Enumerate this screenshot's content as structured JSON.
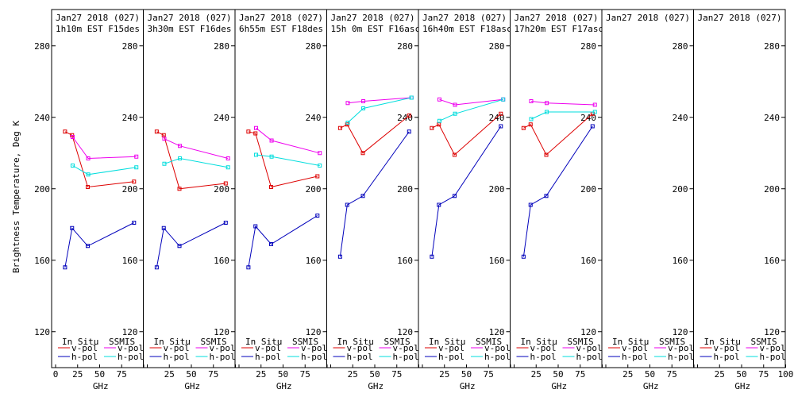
{
  "figure": {
    "ylabel": "Brightness Temperature, Deg K",
    "xlabel": "GHz",
    "legend": {
      "insitu_label": "In Situ",
      "ssmis_label": "SSMIS",
      "vpol_label": "v-pol",
      "hpol_label": "h-pol"
    }
  },
  "colors": {
    "insitu_vpol": "#dd0000",
    "insitu_hpol": "#0000bb",
    "ssmis_vpol": "#ee00ee",
    "ssmis_hpol": "#00dddd"
  },
  "chart_data": [
    {
      "type": "line",
      "title": "Jan27 2018 (027)",
      "subtitle": "1h10m EST F15des",
      "xlim": [
        0,
        100
      ],
      "ylim": [
        110,
        295
      ],
      "xticks": [
        0,
        25,
        50,
        75
      ],
      "yticks": [
        120,
        160,
        200,
        240,
        280
      ],
      "series": [
        {
          "name": "In Situ v-pol",
          "x": [
            10.7,
            18.7,
            36.5,
            89
          ],
          "y": [
            232,
            230,
            201,
            204
          ]
        },
        {
          "name": "In Situ h-pol",
          "x": [
            10.7,
            18.7,
            36.5,
            89
          ],
          "y": [
            156,
            178,
            168,
            181
          ]
        },
        {
          "name": "SSMIS v-pol",
          "x": [
            19.35,
            37,
            91.65
          ],
          "y": [
            229,
            217,
            218
          ]
        },
        {
          "name": "SSMIS h-pol",
          "x": [
            19.35,
            37,
            91.65
          ],
          "y": [
            213,
            208,
            212
          ]
        }
      ]
    },
    {
      "type": "line",
      "title": "Jan27 2018 (027)",
      "subtitle": "3h30m EST F16des",
      "xlim": [
        0,
        100
      ],
      "ylim": [
        110,
        295
      ],
      "xticks": [
        25,
        50,
        75
      ],
      "yticks": [
        120,
        160,
        200,
        240,
        280
      ],
      "series": [
        {
          "name": "In Situ v-pol",
          "x": [
            10.7,
            18.7,
            36.5,
            89
          ],
          "y": [
            232,
            230,
            200,
            203
          ]
        },
        {
          "name": "In Situ h-pol",
          "x": [
            10.7,
            18.7,
            36.5,
            89
          ],
          "y": [
            156,
            178,
            168,
            181
          ]
        },
        {
          "name": "SSMIS v-pol",
          "x": [
            19.35,
            37,
            91.65
          ],
          "y": [
            228,
            224,
            217
          ]
        },
        {
          "name": "SSMIS h-pol",
          "x": [
            19.35,
            37,
            91.65
          ],
          "y": [
            214,
            217,
            212
          ]
        }
      ]
    },
    {
      "type": "line",
      "title": "Jan27 2018 (027)",
      "subtitle": "6h55m EST F18des",
      "xlim": [
        0,
        100
      ],
      "ylim": [
        110,
        295
      ],
      "xticks": [
        25,
        50,
        75
      ],
      "yticks": [
        120,
        160,
        200,
        240,
        280
      ],
      "series": [
        {
          "name": "In Situ v-pol",
          "x": [
            10.7,
            18.7,
            36.5,
            89
          ],
          "y": [
            232,
            231,
            201,
            207
          ]
        },
        {
          "name": "In Situ h-pol",
          "x": [
            10.7,
            18.7,
            36.5,
            89
          ],
          "y": [
            156,
            179,
            169,
            185
          ]
        },
        {
          "name": "SSMIS v-pol",
          "x": [
            19.35,
            37,
            91.65
          ],
          "y": [
            234,
            227,
            220
          ]
        },
        {
          "name": "SSMIS h-pol",
          "x": [
            19.35,
            37,
            91.65
          ],
          "y": [
            219,
            218,
            213
          ]
        }
      ]
    },
    {
      "type": "line",
      "title": "Jan27 2018 (027)",
      "subtitle": "15h 0m EST F16asc",
      "xlim": [
        0,
        100
      ],
      "ylim": [
        110,
        295
      ],
      "xticks": [
        25,
        50,
        75
      ],
      "yticks": [
        120,
        160,
        200,
        240,
        280
      ],
      "series": [
        {
          "name": "In Situ v-pol",
          "x": [
            10.7,
            18.7,
            36.5,
            89
          ],
          "y": [
            234,
            236,
            220,
            241
          ]
        },
        {
          "name": "In Situ h-pol",
          "x": [
            10.7,
            18.7,
            36.5,
            89
          ],
          "y": [
            162,
            191,
            196,
            232
          ]
        },
        {
          "name": "SSMIS v-pol",
          "x": [
            19.35,
            37,
            91.65
          ],
          "y": [
            248,
            249,
            251
          ]
        },
        {
          "name": "SSMIS h-pol",
          "x": [
            19.35,
            37,
            91.65
          ],
          "y": [
            237,
            245,
            251
          ]
        }
      ]
    },
    {
      "type": "line",
      "title": "Jan27 2018 (027)",
      "subtitle": "16h40m EST F18asc",
      "xlim": [
        0,
        100
      ],
      "ylim": [
        110,
        295
      ],
      "xticks": [
        25,
        50,
        75
      ],
      "yticks": [
        120,
        160,
        200,
        240,
        280
      ],
      "series": [
        {
          "name": "In Situ v-pol",
          "x": [
            10.7,
            18.7,
            36.5,
            89
          ],
          "y": [
            234,
            236,
            219,
            242
          ]
        },
        {
          "name": "In Situ h-pol",
          "x": [
            10.7,
            18.7,
            36.5,
            89
          ],
          "y": [
            162,
            191,
            196,
            235
          ]
        },
        {
          "name": "SSMIS v-pol",
          "x": [
            19.35,
            37,
            91.65
          ],
          "y": [
            250,
            247,
            250
          ]
        },
        {
          "name": "SSMIS h-pol",
          "x": [
            19.35,
            37,
            91.65
          ],
          "y": [
            238,
            242,
            250
          ]
        }
      ]
    },
    {
      "type": "line",
      "title": "Jan27 2018 (027)",
      "subtitle": "17h20m EST F17asc",
      "xlim": [
        0,
        100
      ],
      "ylim": [
        110,
        295
      ],
      "xticks": [
        25,
        50,
        75
      ],
      "yticks": [
        120,
        160,
        200,
        240,
        280
      ],
      "series": [
        {
          "name": "In Situ v-pol",
          "x": [
            10.7,
            18.7,
            36.5,
            89
          ],
          "y": [
            234,
            236,
            219,
            242
          ]
        },
        {
          "name": "In Situ h-pol",
          "x": [
            10.7,
            18.7,
            36.5,
            89
          ],
          "y": [
            162,
            191,
            196,
            235
          ]
        },
        {
          "name": "SSMIS v-pol",
          "x": [
            19.35,
            37,
            91.65
          ],
          "y": [
            249,
            248,
            247
          ]
        },
        {
          "name": "SSMIS h-pol",
          "x": [
            19.35,
            37,
            91.65
          ],
          "y": [
            239,
            243,
            243
          ]
        }
      ]
    },
    {
      "type": "line",
      "title": "Jan27 2018 (027)",
      "subtitle": "",
      "xlim": [
        0,
        100
      ],
      "ylim": [
        110,
        295
      ],
      "xticks": [
        25,
        50,
        75
      ],
      "yticks": [
        120,
        160,
        200,
        240,
        280
      ],
      "series": []
    },
    {
      "type": "line",
      "title": "Jan27 2018 (027)",
      "subtitle": "",
      "xlim": [
        0,
        100
      ],
      "ylim": [
        110,
        295
      ],
      "xticks": [
        25,
        50,
        75,
        100
      ],
      "yticks": [
        120,
        160,
        200,
        240,
        280
      ],
      "series": []
    }
  ]
}
